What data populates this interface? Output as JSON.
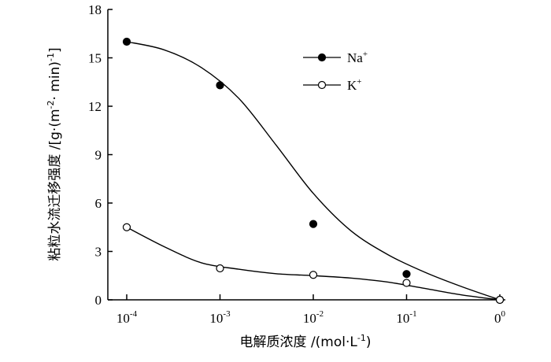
{
  "chart_data": {
    "type": "scatter",
    "xlabel_cn": "电解质浓度",
    "xlabel_unit_pre": "/(mol·L",
    "xlabel_unit_sup": "-1",
    "xlabel_unit_post": ")",
    "ylabel_cn": "粘粒水流迁移强度",
    "ylabel_unit_pre": "/[g·(m",
    "ylabel_unit_sup1": "-2",
    "ylabel_unit_mid": "· min)",
    "ylabel_unit_sup2": "-1",
    "ylabel_unit_post": "]",
    "x_ticks": [
      {
        "base": "10",
        "exp": "-4"
      },
      {
        "base": "10",
        "exp": "-3"
      },
      {
        "base": "10",
        "exp": "-2"
      },
      {
        "base": "10",
        "exp": "-1"
      },
      {
        "base": "0",
        "exp": "0"
      }
    ],
    "y_ticks": [
      "0",
      "3",
      "6",
      "9",
      "12",
      "15",
      "18"
    ],
    "ylim": [
      0,
      18
    ],
    "series": [
      {
        "name": "Na+",
        "name_base": "Na",
        "name_sup": "+",
        "marker": "filled",
        "x": [
          "10^-4",
          "10^-3",
          "10^-2",
          "10^-1",
          "0^0"
        ],
        "values": [
          16.0,
          13.3,
          4.7,
          1.6,
          0.0
        ],
        "fit": [
          16.0,
          15.5,
          14.4,
          12.5,
          9.6,
          6.6,
          4.3,
          2.8,
          1.7,
          0.8,
          0.0
        ]
      },
      {
        "name": "K+",
        "name_base": "K",
        "name_sup": "+",
        "marker": "open",
        "x": [
          "10^-4",
          "10^-3",
          "10^-2",
          "10^-1",
          "0^0"
        ],
        "values": [
          4.5,
          1.95,
          1.55,
          1.05,
          0.0
        ],
        "fit": [
          4.5,
          3.3,
          2.3,
          1.9,
          1.62,
          1.5,
          1.35,
          1.1,
          0.7,
          0.3,
          0.0
        ]
      }
    ]
  }
}
